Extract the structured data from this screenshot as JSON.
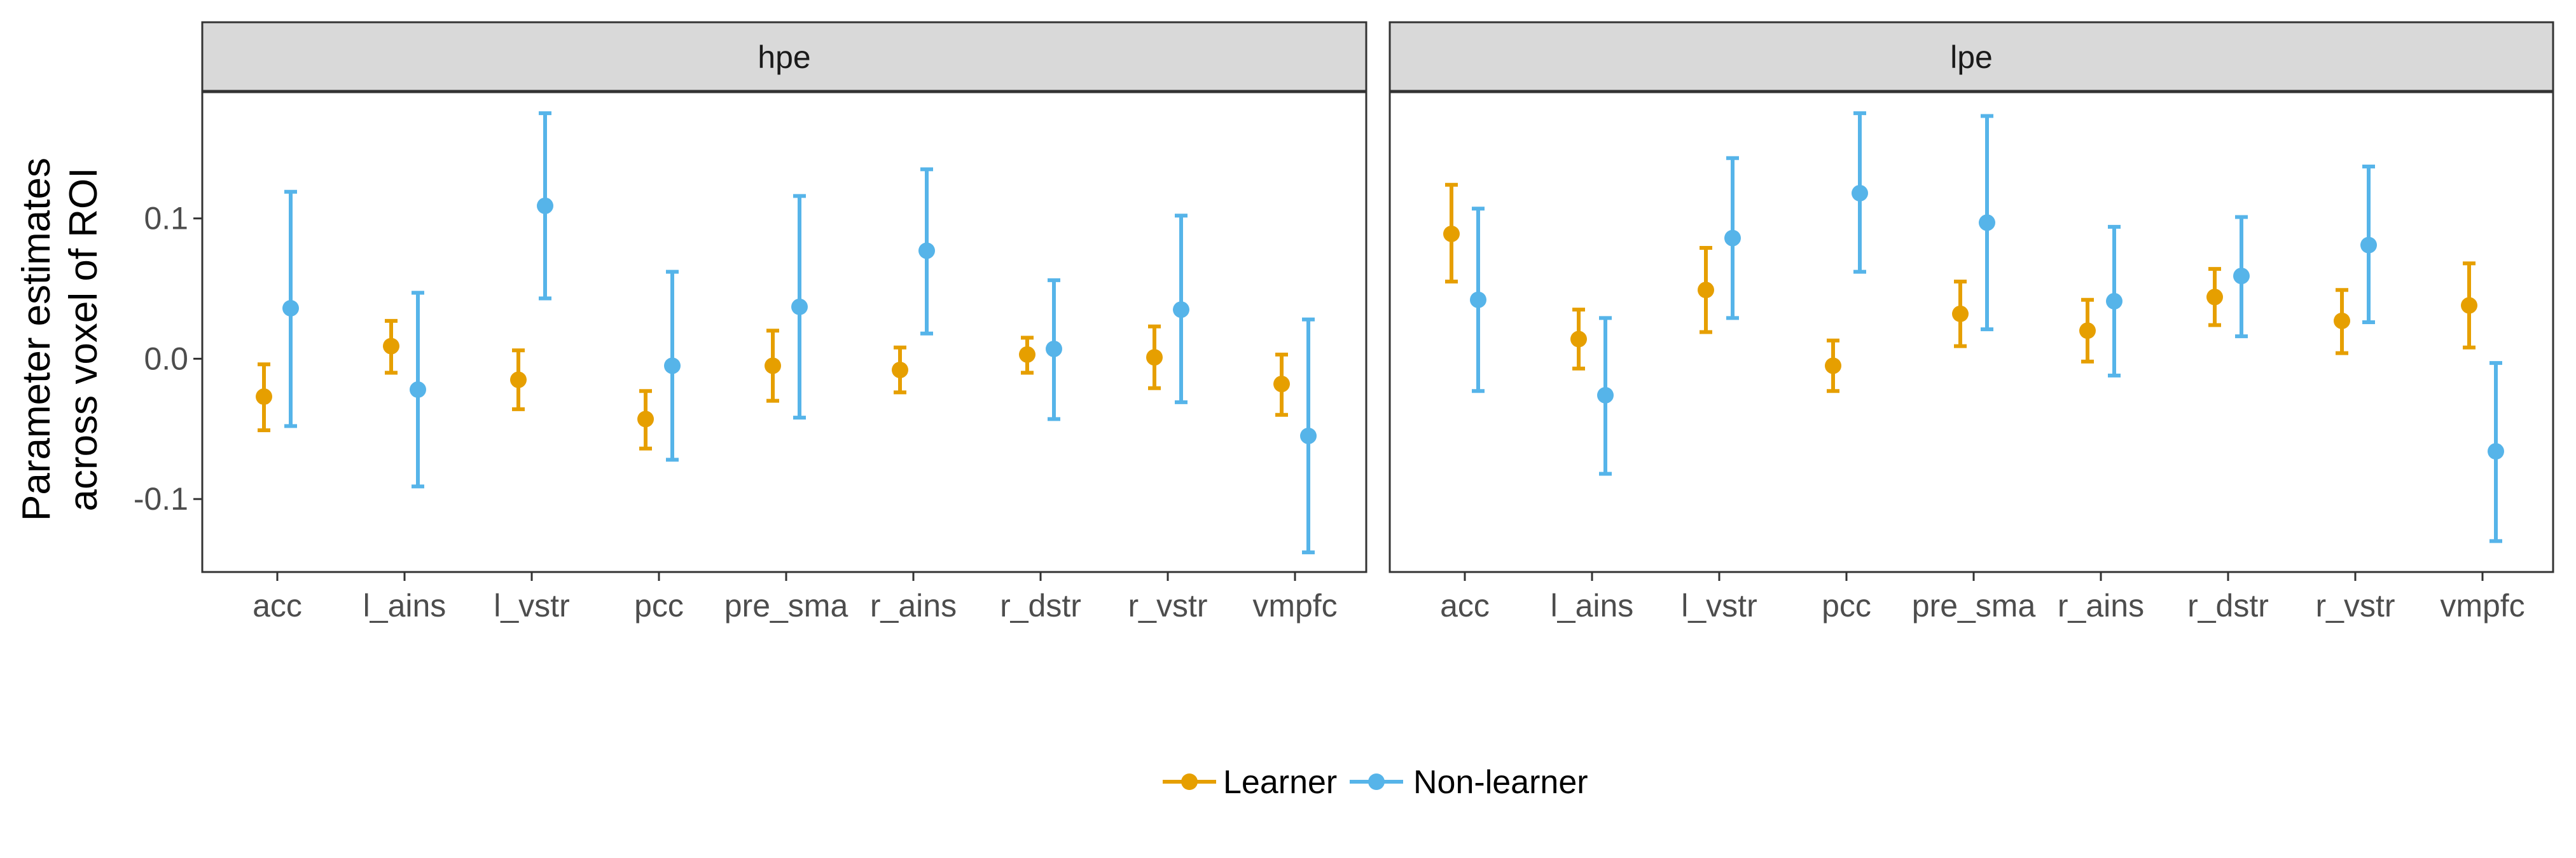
{
  "chart_data": {
    "type": "scatter",
    "subtype": "point-with-errorbars, faceted",
    "ylabel_lines": [
      "Parameter estimates",
      "across voxel of ROI"
    ],
    "xlabel": "",
    "ylim": [
      -0.152,
      0.19
    ],
    "yticks": [
      -0.1,
      0.0,
      0.1
    ],
    "ytick_labels": [
      "-0.1",
      "0.0",
      "0.1"
    ],
    "categories": [
      "acc",
      "l_ains",
      "l_vstr",
      "pcc",
      "pre_sma",
      "r_ains",
      "r_dstr",
      "r_vstr",
      "vmpfc"
    ],
    "grid": false,
    "legend_position": "bottom",
    "legend": [
      {
        "name": "Learner",
        "color": "#E69F00"
      },
      {
        "name": "Non-learner",
        "color": "#56B4E9"
      }
    ],
    "facets": [
      {
        "label": "hpe",
        "series": [
          {
            "name": "Learner",
            "color": "#E69F00",
            "mean": [
              -0.027,
              0.009,
              -0.015,
              -0.043,
              -0.005,
              -0.008,
              0.003,
              0.001,
              -0.018
            ],
            "lower": [
              -0.051,
              -0.01,
              -0.036,
              -0.064,
              -0.03,
              -0.024,
              -0.01,
              -0.021,
              -0.04
            ],
            "upper": [
              -0.004,
              0.027,
              0.006,
              -0.023,
              0.02,
              0.008,
              0.015,
              0.023,
              0.003
            ]
          },
          {
            "name": "Non-learner",
            "color": "#56B4E9",
            "mean": [
              0.036,
              -0.022,
              0.109,
              -0.005,
              0.037,
              0.077,
              0.007,
              0.035,
              -0.055
            ],
            "lower": [
              -0.048,
              -0.091,
              0.043,
              -0.072,
              -0.042,
              0.018,
              -0.043,
              -0.031,
              -0.138
            ],
            "upper": [
              0.119,
              0.047,
              0.175,
              0.062,
              0.116,
              0.135,
              0.056,
              0.102,
              0.028
            ]
          }
        ]
      },
      {
        "label": "lpe",
        "series": [
          {
            "name": "Learner",
            "color": "#E69F00",
            "mean": [
              0.089,
              0.014,
              0.049,
              -0.005,
              0.032,
              0.02,
              0.044,
              0.027,
              0.038
            ],
            "lower": [
              0.055,
              -0.007,
              0.019,
              -0.023,
              0.009,
              -0.002,
              0.024,
              0.004,
              0.008
            ],
            "upper": [
              0.124,
              0.035,
              0.079,
              0.013,
              0.055,
              0.042,
              0.064,
              0.049,
              0.068
            ]
          },
          {
            "name": "Non-learner",
            "color": "#56B4E9",
            "mean": [
              0.042,
              -0.026,
              0.086,
              0.118,
              0.097,
              0.041,
              0.059,
              0.081,
              -0.066
            ],
            "lower": [
              -0.023,
              -0.082,
              0.029,
              0.062,
              0.021,
              -0.012,
              0.016,
              0.026,
              -0.13
            ],
            "upper": [
              0.107,
              0.029,
              0.143,
              0.175,
              0.173,
              0.094,
              0.101,
              0.137,
              -0.003
            ]
          }
        ]
      }
    ]
  }
}
